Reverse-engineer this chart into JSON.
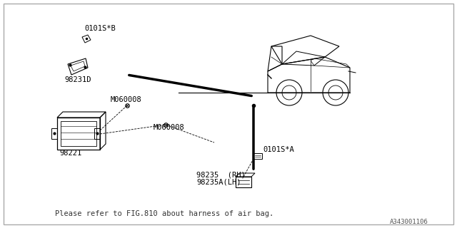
{
  "bg_color": "#ffffff",
  "border_color": "#cccccc",
  "line_color": "#000000",
  "diagram_color": "#555555",
  "title_text": "",
  "footer_text": "Please refer to FIG.810 about harness of air bag.",
  "footer_ref": "A343001106",
  "labels": {
    "0101SB": "0101S*B",
    "98231D": "98231D",
    "M060008_top": "M060008",
    "M060008_mid": "M060008",
    "98221": "98221",
    "98235": "98235  (RH)",
    "98235A": "98235A(LH)",
    "0101SA": "0101S*A"
  },
  "fig_width": 6.4,
  "fig_height": 3.2,
  "dpi": 100
}
